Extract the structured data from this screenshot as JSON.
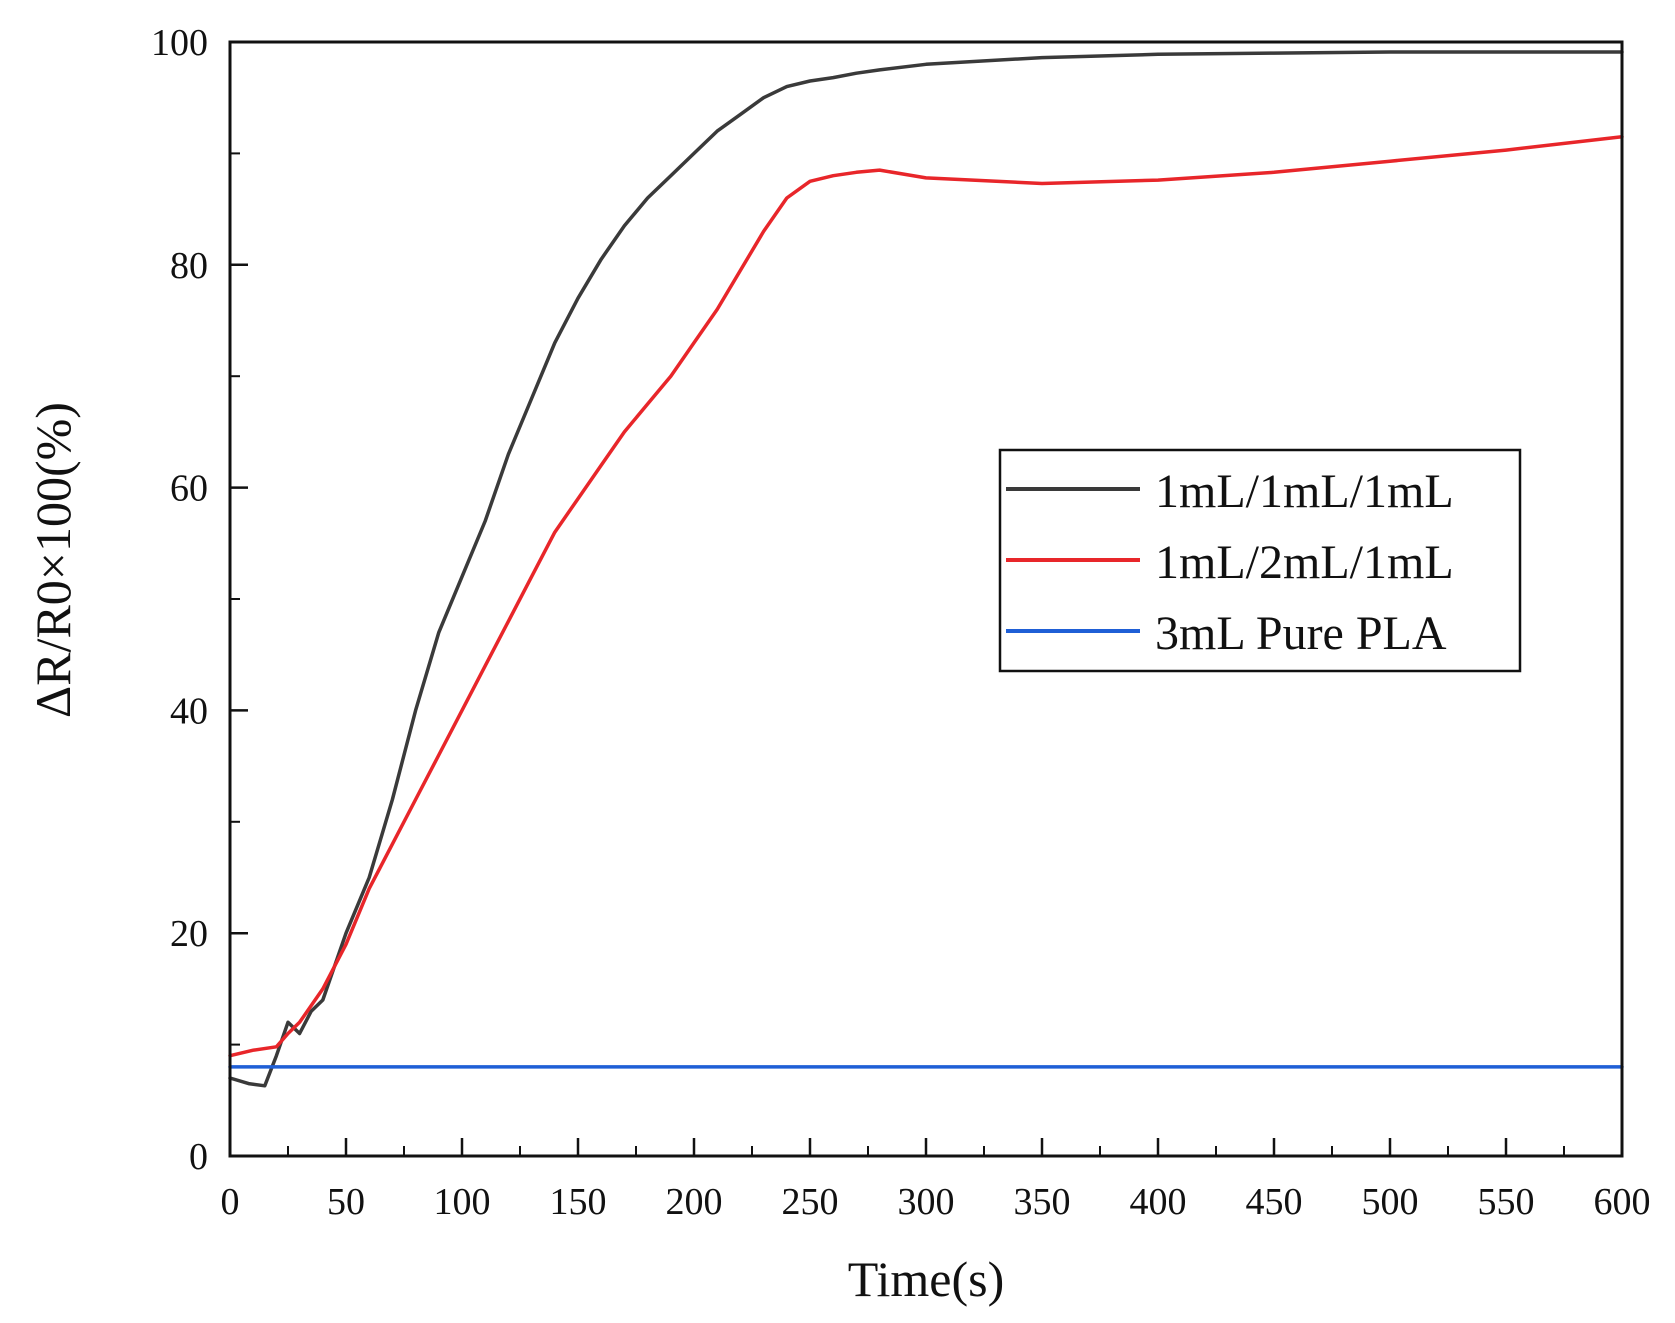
{
  "chart_data": {
    "type": "line",
    "title": "",
    "xlabel": "Time(s)",
    "ylabel": "ΔR/R0×100(%)",
    "xlim": [
      0,
      600
    ],
    "ylim": [
      0,
      100
    ],
    "xticks": [
      0,
      50,
      100,
      150,
      200,
      250,
      300,
      350,
      400,
      450,
      500,
      550,
      600
    ],
    "yticks": [
      0,
      20,
      40,
      60,
      80,
      100
    ],
    "legend_position": "center-right",
    "grid": false,
    "series": [
      {
        "name": "1mL/1mL/1mL",
        "color": "#3a3a3a",
        "x": [
          0,
          8,
          15,
          20,
          25,
          30,
          35,
          40,
          50,
          60,
          70,
          80,
          90,
          100,
          110,
          120,
          130,
          140,
          150,
          160,
          170,
          180,
          190,
          200,
          210,
          220,
          230,
          240,
          250,
          260,
          270,
          280,
          300,
          350,
          400,
          450,
          500,
          550,
          600
        ],
        "y": [
          7,
          6.5,
          6.3,
          9,
          12,
          11,
          13,
          14,
          20,
          25,
          32,
          40,
          47,
          52,
          57,
          63,
          68,
          73,
          77,
          80.5,
          83.5,
          86,
          88,
          90,
          92,
          93.5,
          95,
          96,
          96.5,
          96.8,
          97.2,
          97.5,
          98,
          98.6,
          98.9,
          99,
          99.1,
          99.1,
          99.1
        ]
      },
      {
        "name": "1mL/2mL/1mL",
        "color": "#e8262a",
        "x": [
          0,
          10,
          20,
          25,
          30,
          40,
          50,
          60,
          70,
          80,
          90,
          100,
          110,
          120,
          130,
          140,
          150,
          160,
          170,
          180,
          190,
          200,
          210,
          220,
          230,
          240,
          250,
          260,
          270,
          280,
          300,
          350,
          400,
          450,
          500,
          550,
          600
        ],
        "y": [
          9,
          9.5,
          9.8,
          11,
          12,
          15,
          19,
          24,
          28,
          32,
          36,
          40,
          44,
          48,
          52,
          56,
          59,
          62,
          65,
          67.5,
          70,
          73,
          76,
          79.5,
          83,
          86,
          87.5,
          88,
          88.3,
          88.5,
          87.8,
          87.3,
          87.6,
          88.3,
          89.3,
          90.3,
          91.5
        ]
      },
      {
        "name": "3mL Pure PLA",
        "color": "#1f5fd6",
        "x": [
          0,
          100,
          200,
          300,
          400,
          500,
          600
        ],
        "y": [
          8,
          8,
          8,
          8,
          8,
          8,
          8
        ]
      }
    ]
  }
}
